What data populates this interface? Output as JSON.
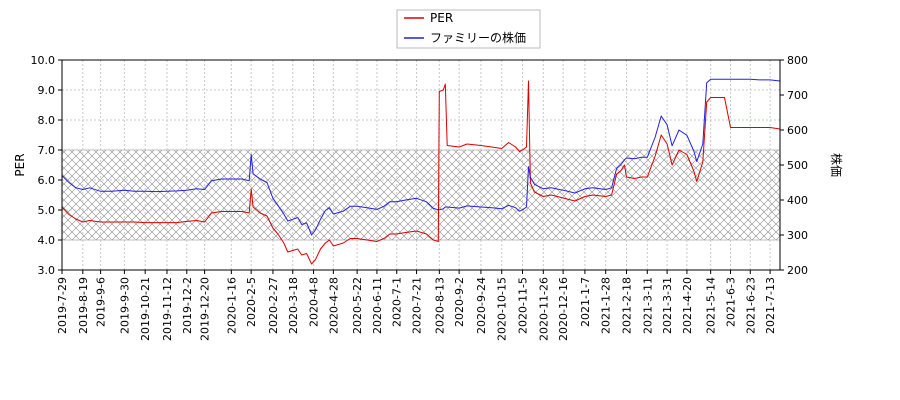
{
  "chart_data": {
    "type": "line",
    "legend": {
      "placement": "top-center",
      "entries": [
        {
          "name": "PER",
          "color": "#dd0000"
        },
        {
          "name": "ファミリーの株価",
          "color": "#2222dd"
        }
      ]
    },
    "ylabel_left": "PER",
    "ylabel_right": "株価",
    "ylim_left": [
      3.0,
      10.0
    ],
    "ylim_right": [
      200,
      800
    ],
    "yticks_left": [
      "3.0",
      "4.0",
      "5.0",
      "6.0",
      "7.0",
      "8.0",
      "9.0",
      "10.0"
    ],
    "yticks_right": [
      "200",
      "300",
      "400",
      "500",
      "600",
      "700",
      "800"
    ],
    "band_left": [
      4.0,
      7.0
    ],
    "grid": true,
    "xlim": [
      "2019-07-29",
      "2021-07-23"
    ],
    "xticks": [
      "2019-7-29",
      "2019-8-19",
      "2019-9-6",
      "2019-9-30",
      "2019-10-21",
      "2019-11-12",
      "2019-12-2",
      "2019-12-20",
      "2020-1-16",
      "2020-2-5",
      "2020-2-27",
      "2020-3-18",
      "2020-4-8",
      "2020-4-28",
      "2020-5-22",
      "2020-6-11",
      "2020-7-1",
      "2020-7-21",
      "2020-8-13",
      "2020-9-2",
      "2020-9-24",
      "2020-10-15",
      "2020-11-5",
      "2020-11-26",
      "2020-12-16",
      "2021-1-7",
      "2021-1-28",
      "2021-2-18",
      "2021-3-11",
      "2021-3-31",
      "2021-4-20",
      "2021-5-14",
      "2021-6-3",
      "2021-6-23",
      "2021-7-13"
    ],
    "series": [
      {
        "name": "PER",
        "axis": "left",
        "color": "#dd0000",
        "points": [
          [
            "2019-07-29",
            5.1
          ],
          [
            "2019-08-05",
            4.85
          ],
          [
            "2019-08-12",
            4.7
          ],
          [
            "2019-08-19",
            4.6
          ],
          [
            "2019-08-26",
            4.65
          ],
          [
            "2019-09-06",
            4.6
          ],
          [
            "2019-09-17",
            4.6
          ],
          [
            "2019-09-30",
            4.6
          ],
          [
            "2019-10-10",
            4.6
          ],
          [
            "2019-10-21",
            4.58
          ],
          [
            "2019-11-01",
            4.58
          ],
          [
            "2019-11-12",
            4.58
          ],
          [
            "2019-11-22",
            4.58
          ],
          [
            "2019-12-02",
            4.62
          ],
          [
            "2019-12-12",
            4.65
          ],
          [
            "2019-12-20",
            4.6
          ],
          [
            "2019-12-27",
            4.9
          ],
          [
            "2020-01-06",
            4.95
          ],
          [
            "2020-01-16",
            4.95
          ],
          [
            "2020-01-27",
            4.95
          ],
          [
            "2020-02-03",
            4.9
          ],
          [
            "2020-02-05",
            5.7
          ],
          [
            "2020-02-07",
            5.1
          ],
          [
            "2020-02-14",
            4.9
          ],
          [
            "2020-02-21",
            4.8
          ],
          [
            "2020-02-27",
            4.4
          ],
          [
            "2020-03-03",
            4.2
          ],
          [
            "2020-03-09",
            3.9
          ],
          [
            "2020-03-13",
            3.6
          ],
          [
            "2020-03-18",
            3.65
          ],
          [
            "2020-03-23",
            3.7
          ],
          [
            "2020-03-27",
            3.5
          ],
          [
            "2020-04-01",
            3.55
          ],
          [
            "2020-04-06",
            3.2
          ],
          [
            "2020-04-10",
            3.35
          ],
          [
            "2020-04-15",
            3.7
          ],
          [
            "2020-04-20",
            3.9
          ],
          [
            "2020-04-24",
            4.0
          ],
          [
            "2020-04-28",
            3.8
          ],
          [
            "2020-05-08",
            3.9
          ],
          [
            "2020-05-15",
            4.05
          ],
          [
            "2020-05-22",
            4.05
          ],
          [
            "2020-06-01",
            4.0
          ],
          [
            "2020-06-11",
            3.95
          ],
          [
            "2020-06-18",
            4.05
          ],
          [
            "2020-06-24",
            4.2
          ],
          [
            "2020-07-01",
            4.2
          ],
          [
            "2020-07-10",
            4.25
          ],
          [
            "2020-07-21",
            4.3
          ],
          [
            "2020-07-31",
            4.2
          ],
          [
            "2020-08-07",
            4.0
          ],
          [
            "2020-08-12",
            3.95
          ],
          [
            "2020-08-13",
            8.95
          ],
          [
            "2020-08-17",
            9.0
          ],
          [
            "2020-08-19",
            9.2
          ],
          [
            "2020-08-21",
            7.15
          ],
          [
            "2020-09-02",
            7.1
          ],
          [
            "2020-09-10",
            7.2
          ],
          [
            "2020-09-24",
            7.15
          ],
          [
            "2020-10-05",
            7.1
          ],
          [
            "2020-10-15",
            7.05
          ],
          [
            "2020-10-22",
            7.25
          ],
          [
            "2020-10-29",
            7.1
          ],
          [
            "2020-11-02",
            6.95
          ],
          [
            "2020-11-05",
            7.0
          ],
          [
            "2020-11-09",
            7.1
          ],
          [
            "2020-11-11",
            9.3
          ],
          [
            "2020-11-13",
            5.9
          ],
          [
            "2020-11-17",
            5.6
          ],
          [
            "2020-11-26",
            5.45
          ],
          [
            "2020-12-04",
            5.5
          ],
          [
            "2020-12-16",
            5.4
          ],
          [
            "2020-12-28",
            5.3
          ],
          [
            "2021-01-07",
            5.45
          ],
          [
            "2021-01-15",
            5.5
          ],
          [
            "2021-01-28",
            5.45
          ],
          [
            "2021-02-03",
            5.5
          ],
          [
            "2021-02-08",
            6.2
          ],
          [
            "2021-02-12",
            6.3
          ],
          [
            "2021-02-16",
            6.5
          ],
          [
            "2021-02-18",
            6.1
          ],
          [
            "2021-02-26",
            6.05
          ],
          [
            "2021-03-05",
            6.1
          ],
          [
            "2021-03-11",
            6.1
          ],
          [
            "2021-03-19",
            6.8
          ],
          [
            "2021-03-25",
            7.5
          ],
          [
            "2021-03-31",
            7.2
          ],
          [
            "2021-04-05",
            6.5
          ],
          [
            "2021-04-12",
            7.0
          ],
          [
            "2021-04-20",
            6.85
          ],
          [
            "2021-04-27",
            6.3
          ],
          [
            "2021-04-30",
            5.95
          ],
          [
            "2021-05-06",
            6.6
          ],
          [
            "2021-05-10",
            8.6
          ],
          [
            "2021-05-14",
            8.75
          ],
          [
            "2021-05-28",
            8.75
          ],
          [
            "2021-06-03",
            7.75
          ],
          [
            "2021-06-23",
            7.75
          ],
          [
            "2021-07-02",
            7.75
          ],
          [
            "2021-07-13",
            7.75
          ],
          [
            "2021-07-23",
            7.7
          ]
        ]
      },
      {
        "name": "ファミリーの株価",
        "axis": "right",
        "color": "#2222dd",
        "points": [
          [
            "2019-07-29",
            470
          ],
          [
            "2019-08-05",
            450
          ],
          [
            "2019-08-12",
            435
          ],
          [
            "2019-08-19",
            430
          ],
          [
            "2019-08-26",
            435
          ],
          [
            "2019-09-06",
            425
          ],
          [
            "2019-09-17",
            425
          ],
          [
            "2019-09-30",
            428
          ],
          [
            "2019-10-10",
            425
          ],
          [
            "2019-10-21",
            425
          ],
          [
            "2019-11-01",
            424
          ],
          [
            "2019-11-12",
            425
          ],
          [
            "2019-11-22",
            426
          ],
          [
            "2019-12-02",
            428
          ],
          [
            "2019-12-12",
            432
          ],
          [
            "2019-12-20",
            430
          ],
          [
            "2019-12-27",
            455
          ],
          [
            "2020-01-06",
            460
          ],
          [
            "2020-01-16",
            460
          ],
          [
            "2020-01-27",
            460
          ],
          [
            "2020-02-03",
            455
          ],
          [
            "2020-02-05",
            530
          ],
          [
            "2020-02-07",
            475
          ],
          [
            "2020-02-14",
            460
          ],
          [
            "2020-02-21",
            450
          ],
          [
            "2020-02-27",
            405
          ],
          [
            "2020-03-03",
            385
          ],
          [
            "2020-03-09",
            360
          ],
          [
            "2020-03-13",
            340
          ],
          [
            "2020-03-18",
            345
          ],
          [
            "2020-03-23",
            350
          ],
          [
            "2020-03-27",
            330
          ],
          [
            "2020-04-01",
            335
          ],
          [
            "2020-04-06",
            300
          ],
          [
            "2020-04-10",
            315
          ],
          [
            "2020-04-15",
            345
          ],
          [
            "2020-04-20",
            370
          ],
          [
            "2020-04-24",
            378
          ],
          [
            "2020-04-28",
            360
          ],
          [
            "2020-05-08",
            368
          ],
          [
            "2020-05-15",
            382
          ],
          [
            "2020-05-22",
            382
          ],
          [
            "2020-06-01",
            378
          ],
          [
            "2020-06-11",
            373
          ],
          [
            "2020-06-18",
            382
          ],
          [
            "2020-06-24",
            395
          ],
          [
            "2020-07-01",
            395
          ],
          [
            "2020-07-10",
            400
          ],
          [
            "2020-07-21",
            405
          ],
          [
            "2020-07-31",
            395
          ],
          [
            "2020-08-07",
            376
          ],
          [
            "2020-08-12",
            372
          ],
          [
            "2020-08-13",
            372
          ],
          [
            "2020-08-17",
            375
          ],
          [
            "2020-08-19",
            380
          ],
          [
            "2020-08-21",
            380
          ],
          [
            "2020-09-02",
            377
          ],
          [
            "2020-09-10",
            383
          ],
          [
            "2020-09-24",
            380
          ],
          [
            "2020-10-05",
            378
          ],
          [
            "2020-10-15",
            375
          ],
          [
            "2020-10-22",
            385
          ],
          [
            "2020-10-29",
            378
          ],
          [
            "2020-11-02",
            368
          ],
          [
            "2020-11-05",
            372
          ],
          [
            "2020-11-09",
            380
          ],
          [
            "2020-11-11",
            495
          ],
          [
            "2020-11-13",
            465
          ],
          [
            "2020-11-17",
            445
          ],
          [
            "2020-11-26",
            432
          ],
          [
            "2020-12-04",
            435
          ],
          [
            "2020-12-16",
            428
          ],
          [
            "2020-12-28",
            420
          ],
          [
            "2021-01-07",
            432
          ],
          [
            "2021-01-15",
            435
          ],
          [
            "2021-01-28",
            430
          ],
          [
            "2021-02-03",
            435
          ],
          [
            "2021-02-08",
            490
          ],
          [
            "2021-02-12",
            500
          ],
          [
            "2021-02-16",
            515
          ],
          [
            "2021-02-18",
            520
          ],
          [
            "2021-02-26",
            518
          ],
          [
            "2021-03-05",
            522
          ],
          [
            "2021-03-11",
            522
          ],
          [
            "2021-03-19",
            580
          ],
          [
            "2021-03-25",
            640
          ],
          [
            "2021-03-31",
            615
          ],
          [
            "2021-04-05",
            555
          ],
          [
            "2021-04-12",
            600
          ],
          [
            "2021-04-20",
            585
          ],
          [
            "2021-04-27",
            540
          ],
          [
            "2021-04-30",
            510
          ],
          [
            "2021-05-06",
            560
          ],
          [
            "2021-05-10",
            735
          ],
          [
            "2021-05-14",
            745
          ],
          [
            "2021-05-28",
            745
          ],
          [
            "2021-06-03",
            745
          ],
          [
            "2021-06-23",
            745
          ],
          [
            "2021-07-02",
            743
          ],
          [
            "2021-07-13",
            743
          ],
          [
            "2021-07-23",
            740
          ]
        ]
      }
    ]
  }
}
